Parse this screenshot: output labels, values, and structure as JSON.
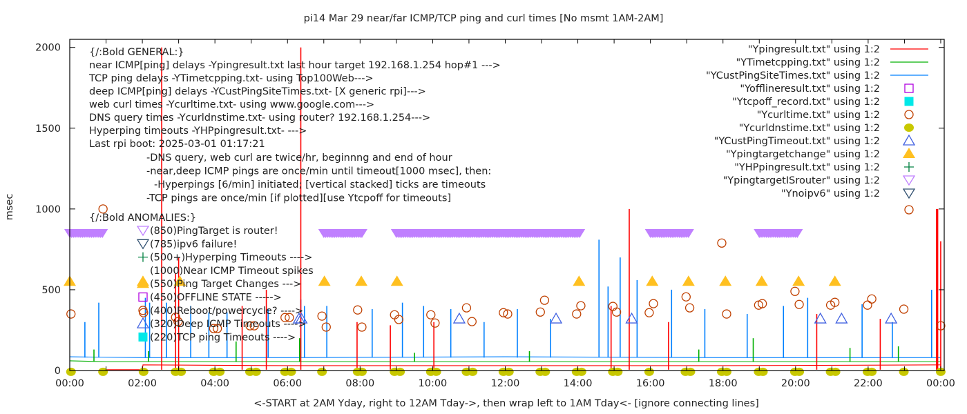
{
  "chart_data": {
    "type": "line",
    "title": "pi14 Mar 29  near/far ICMP/TCP ping and curl times [No msmt 1AM-2AM]",
    "xlabel": "<-START at 2AM Yday, right to 12AM Tday->, then wrap left to 1AM Tday<- [ignore connecting lines]",
    "ylabel": "msec",
    "ylim": [
      0,
      2050
    ],
    "xlim": [
      "00:00",
      "24:05"
    ],
    "x_ticks": [
      "00:00",
      "02:00",
      "04:00",
      "06:00",
      "08:00",
      "10:00",
      "12:00",
      "14:00",
      "16:00",
      "18:00",
      "20:00",
      "22:00",
      "00:00"
    ],
    "y_ticks": [
      "0",
      "500",
      "1000",
      "1500",
      "2000"
    ],
    "grid": false,
    "legend_placement": "top-right",
    "colors": {
      "ping": "#ff0000",
      "tcp": "#00b000",
      "custping": "#0080ff",
      "offline": "#b000e0",
      "tcpoff": "#00e8e8",
      "curl": "#c04000",
      "dns": "#c8c800",
      "custtimeout": "#4060e0",
      "targetchange": "#ffc020",
      "hp": "#008040",
      "router": "#c080ff",
      "noipv6": "#305070"
    },
    "legend": [
      {
        "label": "\"Ypingresult.txt\" using 1:2",
        "key": "ping",
        "style": "line"
      },
      {
        "label": "\"YTimetcpping.txt\" using 1:2",
        "key": "tcp",
        "style": "line"
      },
      {
        "label": "\"YCustPingSiteTimes.txt\" using 1:2",
        "key": "custping",
        "style": "line"
      },
      {
        "label": "\"Yofflineresult.txt\" using 1:2",
        "key": "offline",
        "style": "open-square"
      },
      {
        "label": "\"Ytcpoff_record.txt\" using 1:2",
        "key": "tcpoff",
        "style": "filled-square"
      },
      {
        "label": "\"Ycurltime.txt\" using 1:2",
        "key": "curl",
        "style": "open-circle"
      },
      {
        "label": "\"Ycurldnstime.txt\" using 1:2",
        "key": "dns",
        "style": "filled-circle"
      },
      {
        "label": "\"YCustPingTimeout.txt\" using 1:2",
        "key": "custtimeout",
        "style": "open-triangle"
      },
      {
        "label": "\"Ypingtargetchange\" using 1:2",
        "key": "targetchange",
        "style": "filled-triangle"
      },
      {
        "label": "\"YHPpingresult.txt\" using 1:2",
        "key": "hp",
        "style": "plus"
      },
      {
        "label": "\"YpingtargetISrouter\" using 1:2",
        "key": "router",
        "style": "open-down-triangle"
      },
      {
        "label": "\"Ynoipv6\" using 1:2",
        "key": "noipv6",
        "style": "open-down-triangle"
      },
      {
        "label": "",
        "key": "curl",
        "style": "open-circle"
      }
    ],
    "annotations_general": [
      "{/:Bold GENERAL:}",
      "near ICMP[ping] delays -Ypingresult.txt last hour target 192.168.1.254 hop#1 --->",
      "TCP ping delays -YTimetcpping.txt- using Top100Web--->",
      "deep ICMP[ping] delays -YCustPingSiteTimes.txt- [X generic rpi]--->",
      "web curl times -Ycurltime.txt- using www.google.com--->",
      "DNS query times -Ycurldnstime.txt- using router? 192.168.1.254--->",
      "Hyperping timeouts -YHPpingresult.txt- --->",
      "Last rpi boot: 2025-03-01 01:17:21"
    ],
    "annotations_notes": [
      "-DNS query, web curl are twice/hr, beginnng and end of hour",
      "-near,deep ICMP pings are once/min until timeout[1000 msec], then:",
      "-Hyperpings [6/min] initiated; [vertical stacked] ticks are timeouts",
      "-TCP pings are once/min [if plotted][use Ytcpoff for timeouts]"
    ],
    "annotations_anomalies_title": "{/:Bold ANOMALIES:}",
    "annotations_anomalies": [
      {
        "text": "(850)PingTarget is router!",
        "key": "router",
        "style": "open-down-triangle"
      },
      {
        "text": "(785)ipv6 failure!",
        "key": "noipv6",
        "style": "open-down-triangle"
      },
      {
        "text": "(500+)Hyperping Timeouts ---->",
        "key": "hp",
        "style": "plus"
      },
      {
        "text": "(1000)Near ICMP Timeout spikes",
        "key": "",
        "style": "none"
      },
      {
        "text": "(550)Ping Target Changes --->",
        "key": "targetchange",
        "style": "filled-triangle"
      },
      {
        "text": "(450)OFFLINE STATE ----->",
        "key": "offline",
        "style": "open-square"
      },
      {
        "text": "(400)Reboot/powercycle? ---->",
        "key": "curl",
        "style": "open-circle"
      },
      {
        "text": "(320)Deep ICMP Timeouts ---->",
        "key": "custtimeout",
        "style": "open-triangle"
      },
      {
        "text": "(220)TCP ping Timeouts ---->",
        "key": "tcpoff",
        "style": "filled-square"
      }
    ],
    "series": {
      "ping": {
        "baseline": [
          [
            "01:00",
            5
          ],
          [
            "02:00",
            5
          ],
          [
            "02:01",
            35
          ],
          [
            "06:00",
            30
          ],
          [
            "12:00",
            30
          ],
          [
            "18:00",
            30
          ],
          [
            "24:00",
            35
          ]
        ],
        "spikes": [
          [
            "02:32",
            2000
          ],
          [
            "02:55",
            600
          ],
          [
            "03:00",
            700
          ],
          [
            "04:45",
            400
          ],
          [
            "05:25",
            500
          ],
          [
            "06:22",
            2000
          ],
          [
            "07:55",
            300
          ],
          [
            "08:50",
            280
          ],
          [
            "10:02",
            300
          ],
          [
            "14:55",
            400
          ],
          [
            "15:25",
            1000
          ],
          [
            "16:30",
            300
          ],
          [
            "20:35",
            350
          ],
          [
            "22:20",
            320
          ],
          [
            "23:53",
            1000
          ],
          [
            "23:55",
            1000
          ],
          [
            "24:00",
            800
          ]
        ]
      },
      "tcp": {
        "baseline": [
          [
            "00:00",
            60
          ],
          [
            "01:00",
            55
          ],
          [
            "02:00",
            55
          ],
          [
            "06:00",
            55
          ],
          [
            "12:00",
            55
          ],
          [
            "18:00",
            55
          ],
          [
            "24:00",
            55
          ]
        ],
        "spikes": [
          [
            "00:40",
            130
          ],
          [
            "02:10",
            120
          ],
          [
            "04:35",
            180
          ],
          [
            "06:20",
            200
          ],
          [
            "09:30",
            110
          ],
          [
            "12:40",
            120
          ],
          [
            "17:20",
            130
          ],
          [
            "18:50",
            200
          ],
          [
            "21:30",
            140
          ],
          [
            "22:50",
            150
          ]
        ]
      },
      "custping": {
        "baseline": [
          [
            "00:00",
            85
          ],
          [
            "02:00",
            80
          ],
          [
            "06:00",
            80
          ],
          [
            "12:00",
            85
          ],
          [
            "18:00",
            80
          ],
          [
            "24:00",
            80
          ]
        ],
        "spikes": [
          [
            "00:25",
            300
          ],
          [
            "00:48",
            420
          ],
          [
            "02:05",
            450
          ],
          [
            "02:12",
            420
          ],
          [
            "02:40",
            420
          ],
          [
            "03:20",
            400
          ],
          [
            "03:50",
            360
          ],
          [
            "04:20",
            360
          ],
          [
            "05:28",
            380
          ],
          [
            "06:22",
            440
          ],
          [
            "06:28",
            400
          ],
          [
            "07:05",
            400
          ],
          [
            "08:20",
            380
          ],
          [
            "09:10",
            420
          ],
          [
            "09:45",
            400
          ],
          [
            "10:30",
            380
          ],
          [
            "11:25",
            300
          ],
          [
            "12:20",
            380
          ],
          [
            "13:15",
            320
          ],
          [
            "14:35",
            810
          ],
          [
            "14:50",
            520
          ],
          [
            "15:10",
            700
          ],
          [
            "15:38",
            560
          ],
          [
            "16:35",
            500
          ],
          [
            "17:30",
            380
          ],
          [
            "18:40",
            350
          ],
          [
            "19:40",
            400
          ],
          [
            "20:20",
            450
          ],
          [
            "21:50",
            410
          ],
          [
            "22:40",
            300
          ],
          [
            "23:45",
            500
          ]
        ]
      },
      "curl": [
        [
          "00:02",
          350
        ],
        [
          "00:55",
          1000
        ],
        [
          "02:02",
          358
        ],
        [
          "02:55",
          330
        ],
        [
          "02:59",
          303
        ],
        [
          "03:58",
          260
        ],
        [
          "04:04",
          260
        ],
        [
          "04:58",
          277
        ],
        [
          "05:05",
          277
        ],
        [
          "05:56",
          328
        ],
        [
          "06:03",
          328
        ],
        [
          "06:57",
          337
        ],
        [
          "07:04",
          269
        ],
        [
          "07:56",
          375
        ],
        [
          "08:03",
          269
        ],
        [
          "08:57",
          345
        ],
        [
          "09:04",
          316
        ],
        [
          "09:57",
          345
        ],
        [
          "10:04",
          294
        ],
        [
          "10:56",
          388
        ],
        [
          "11:05",
          303
        ],
        [
          "11:57",
          358
        ],
        [
          "12:04",
          350
        ],
        [
          "12:58",
          362
        ],
        [
          "13:05",
          435
        ],
        [
          "13:58",
          350
        ],
        [
          "14:05",
          401
        ],
        [
          "14:58",
          397
        ],
        [
          "15:04",
          362
        ],
        [
          "15:58",
          358
        ],
        [
          "16:05",
          414
        ],
        [
          "16:59",
          456
        ],
        [
          "17:05",
          388
        ],
        [
          "17:58",
          789
        ],
        [
          "18:06",
          350
        ],
        [
          "18:59",
          405
        ],
        [
          "19:05",
          414
        ],
        [
          "19:59",
          490
        ],
        [
          "20:06",
          409
        ],
        [
          "20:58",
          405
        ],
        [
          "21:05",
          422
        ],
        [
          "21:59",
          405
        ],
        [
          "22:06",
          443
        ],
        [
          "22:59",
          380
        ],
        [
          "24:00",
          277
        ]
      ],
      "dns": [
        [
          "00:02",
          5
        ],
        [
          "00:55",
          5
        ],
        [
          "02:02",
          5
        ],
        [
          "02:55",
          5
        ],
        [
          "03:04",
          5
        ],
        [
          "03:58",
          5
        ],
        [
          "04:08",
          5
        ],
        [
          "04:58",
          5
        ],
        [
          "05:08",
          5
        ],
        [
          "05:56",
          5
        ],
        [
          "06:06",
          5
        ],
        [
          "06:57",
          5
        ],
        [
          "07:56",
          5
        ],
        [
          "08:03",
          5
        ],
        [
          "08:57",
          5
        ],
        [
          "09:06",
          5
        ],
        [
          "09:57",
          5
        ],
        [
          "10:06",
          5
        ],
        [
          "10:56",
          5
        ],
        [
          "11:06",
          5
        ],
        [
          "11:57",
          5
        ],
        [
          "12:06",
          5
        ],
        [
          "12:58",
          5
        ],
        [
          "13:06",
          5
        ],
        [
          "13:58",
          5
        ],
        [
          "14:06",
          5
        ],
        [
          "14:58",
          5
        ],
        [
          "15:06",
          5
        ],
        [
          "15:58",
          5
        ],
        [
          "16:58",
          5
        ],
        [
          "17:06",
          5
        ],
        [
          "17:58",
          5
        ],
        [
          "18:06",
          5
        ],
        [
          "18:59",
          5
        ],
        [
          "19:06",
          5
        ],
        [
          "19:59",
          5
        ],
        [
          "20:06",
          5
        ],
        [
          "20:58",
          5
        ],
        [
          "21:06",
          5
        ],
        [
          "21:59",
          5
        ],
        [
          "22:06",
          5
        ],
        [
          "22:59",
          5
        ],
        [
          "24:00",
          5
        ]
      ],
      "targetchange": [
        [
          "00:00",
          550
        ],
        [
          "02:01",
          550
        ],
        [
          "03:02",
          550
        ],
        [
          "07:01",
          550
        ],
        [
          "08:02",
          550
        ],
        [
          "09:01",
          550
        ],
        [
          "14:02",
          550
        ],
        [
          "16:03",
          550
        ],
        [
          "17:03",
          550
        ],
        [
          "18:04",
          550
        ],
        [
          "19:04",
          550
        ],
        [
          "20:05",
          550
        ],
        [
          "21:05",
          550
        ]
      ],
      "custtimeout": [
        [
          "06:19",
          320
        ],
        [
          "06:23",
          320
        ],
        [
          "10:44",
          320
        ],
        [
          "13:24",
          320
        ],
        [
          "15:29",
          320
        ],
        [
          "20:41",
          320
        ],
        [
          "21:16",
          320
        ],
        [
          "22:38",
          320
        ]
      ],
      "router": {
        "value": 850,
        "ranges": [
          [
            "00:00",
            "00:55"
          ],
          [
            "07:00",
            "08:05"
          ],
          [
            "09:00",
            "14:05"
          ],
          [
            "16:00",
            "17:05"
          ],
          [
            "19:00",
            "20:05"
          ]
        ]
      }
    }
  }
}
